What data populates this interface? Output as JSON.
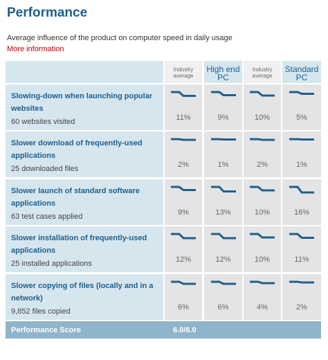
{
  "header": {
    "title": "Performance",
    "subtitle": "Average influence of the product on computer speed in daily usage",
    "link": "More information"
  },
  "table": {
    "columns": [
      "Industry average",
      "High end PC",
      "Industry average",
      "Standard PC"
    ],
    "rows": [
      {
        "title": "Slowing-down when launching popular websites",
        "detail": "60 websites visited",
        "cells": [
          "11%",
          "9%",
          "10%",
          "5%"
        ]
      },
      {
        "title": "Slower download of frequently-used applications",
        "detail": "25 downloaded files",
        "cells": [
          "2%",
          "1%",
          "2%",
          "1%"
        ]
      },
      {
        "title": "Slower launch of standard software applications",
        "detail": "63 test cases applied",
        "cells": [
          "9%",
          "13%",
          "10%",
          "16%"
        ]
      },
      {
        "title": "Slower installation of frequently-used applications",
        "detail": "25 installed applications",
        "cells": [
          "12%",
          "12%",
          "10%",
          "11%"
        ]
      },
      {
        "title": "Slower copying of files (locally and in a network)",
        "detail": "9,852 files copied",
        "cells": [
          "6%",
          "6%",
          "4%",
          "2%"
        ]
      }
    ],
    "score": {
      "label": "Performance Score",
      "value": "6.0/6.0"
    }
  }
}
